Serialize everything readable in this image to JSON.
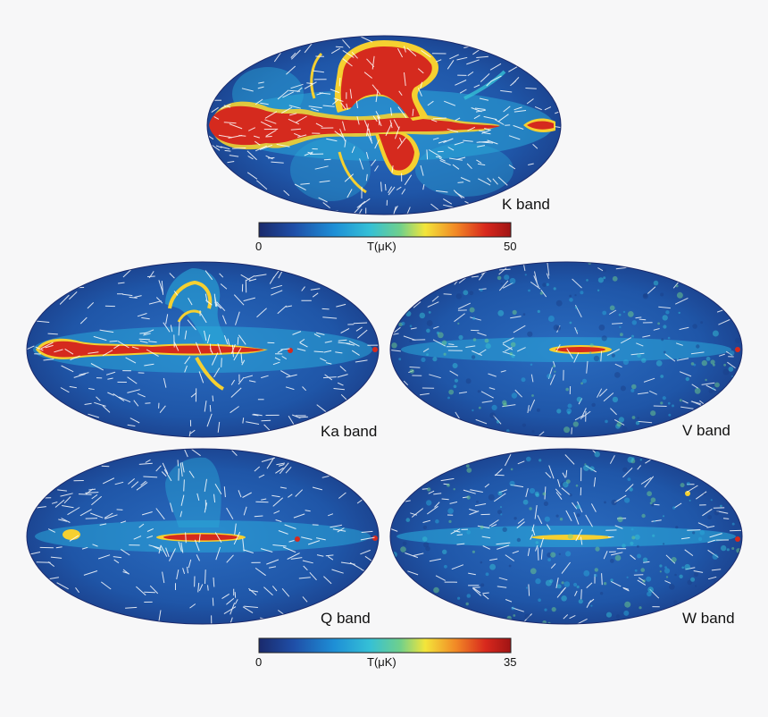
{
  "maps": [
    {
      "id": "k",
      "label": "K band",
      "colorbar": "top",
      "intensity": "very-high"
    },
    {
      "id": "ka",
      "label": "Ka band",
      "colorbar": "bottom",
      "intensity": "high"
    },
    {
      "id": "v",
      "label": "V band",
      "colorbar": "bottom",
      "intensity": "low"
    },
    {
      "id": "q",
      "label": "Q band",
      "colorbar": "bottom",
      "intensity": "medium"
    },
    {
      "id": "w",
      "label": "W band",
      "colorbar": "bottom",
      "intensity": "low"
    }
  ],
  "colorbars": {
    "top": {
      "min": "0",
      "max": "50",
      "unit": "T(μK)"
    },
    "bottom": {
      "min": "0",
      "max": "35",
      "unit": "T(μK)"
    }
  },
  "colors": {
    "background": "#f7f7f8",
    "map_base": "#1f4f9e",
    "vector_color": "#ffffff",
    "colormap": [
      "#1a2a6c",
      "#1f4fa8",
      "#1e8fd6",
      "#35c0d6",
      "#6fd08c",
      "#f3e53a",
      "#f28a26",
      "#d8281d",
      "#a01414"
    ]
  }
}
